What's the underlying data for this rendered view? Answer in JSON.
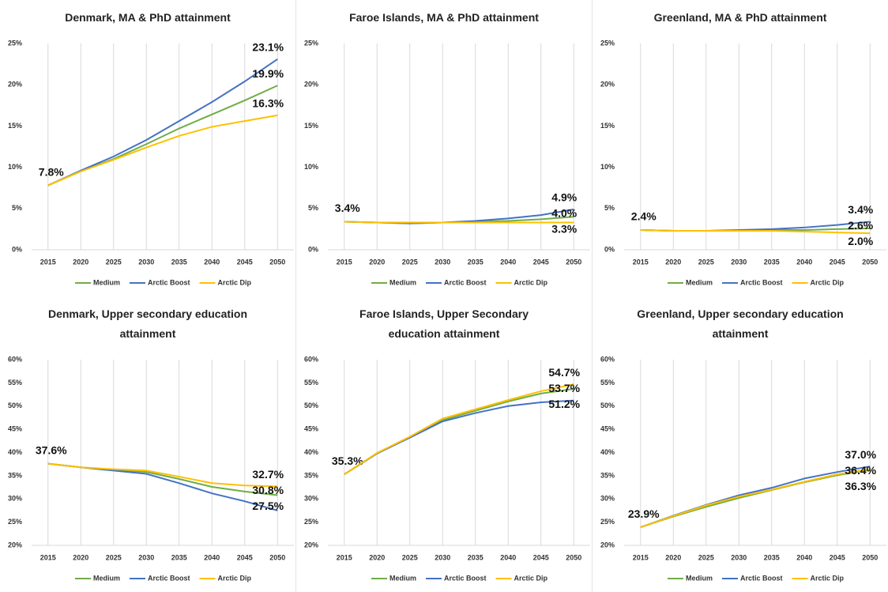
{
  "chart_data": [
    {
      "type": "line",
      "title": "Denmark, MA & PhD attainment",
      "categories": [
        "2015",
        "2020",
        "2025",
        "2030",
        "2035",
        "2040",
        "2045",
        "2050"
      ],
      "ylim": [
        0,
        25
      ],
      "yticks": [
        {
          "value": 0,
          "label": "0%"
        },
        {
          "value": 5,
          "label": "5%"
        },
        {
          "value": 10,
          "label": "10%"
        },
        {
          "value": 15,
          "label": "15%"
        },
        {
          "value": 20,
          "label": "20%"
        },
        {
          "value": 25,
          "label": "25%"
        }
      ],
      "grid": true,
      "legend": "bottom",
      "series": [
        {
          "name": "Medium",
          "color": "#70ad47",
          "values": [
            7.8,
            9.5,
            11.0,
            12.8,
            14.7,
            16.4,
            18.1,
            19.9
          ],
          "value_labels": [
            "7.8%",
            null,
            null,
            null,
            null,
            null,
            null,
            "19.9%"
          ]
        },
        {
          "name": "Arctic Boost",
          "color": "#4472c4",
          "values": [
            7.8,
            9.6,
            11.3,
            13.3,
            15.6,
            17.9,
            20.4,
            23.1
          ],
          "value_labels": [
            null,
            null,
            null,
            null,
            null,
            null,
            null,
            "23.1%"
          ]
        },
        {
          "name": "Arctic Dip",
          "color": "#ffc000",
          "values": [
            7.8,
            9.5,
            10.9,
            12.4,
            13.8,
            14.9,
            15.6,
            16.3
          ],
          "value_labels": [
            null,
            null,
            null,
            null,
            null,
            null,
            null,
            "16.3%"
          ]
        }
      ]
    },
    {
      "type": "line",
      "title": "Faroe Islands, MA & PhD attainment",
      "categories": [
        "2015",
        "2020",
        "2025",
        "2030",
        "2035",
        "2040",
        "2045",
        "2050"
      ],
      "ylim": [
        0,
        25
      ],
      "yticks": [
        {
          "value": 0,
          "label": "0%"
        },
        {
          "value": 5,
          "label": "5%"
        },
        {
          "value": 10,
          "label": "10%"
        },
        {
          "value": 15,
          "label": "15%"
        },
        {
          "value": 20,
          "label": "20%"
        },
        {
          "value": 25,
          "label": "25%"
        }
      ],
      "grid": true,
      "legend": "bottom",
      "series": [
        {
          "name": "Medium",
          "color": "#70ad47",
          "values": [
            3.4,
            3.3,
            3.2,
            3.3,
            3.4,
            3.5,
            3.7,
            4.0
          ],
          "value_labels": [
            "3.4%",
            null,
            null,
            null,
            null,
            null,
            null,
            "4.0%"
          ]
        },
        {
          "name": "Arctic Boost",
          "color": "#4472c4",
          "values": [
            3.4,
            3.3,
            3.2,
            3.3,
            3.5,
            3.8,
            4.2,
            4.9
          ],
          "value_labels": [
            null,
            null,
            null,
            null,
            null,
            null,
            null,
            "4.9%"
          ]
        },
        {
          "name": "Arctic Dip",
          "color": "#ffc000",
          "values": [
            3.4,
            3.3,
            3.3,
            3.3,
            3.3,
            3.3,
            3.3,
            3.3
          ],
          "value_labels": [
            null,
            null,
            null,
            null,
            null,
            null,
            null,
            "3.3%"
          ]
        }
      ]
    },
    {
      "type": "line",
      "title": "Greenland, MA & PhD attainment",
      "categories": [
        "2015",
        "2020",
        "2025",
        "2030",
        "2035",
        "2040",
        "2045",
        "2050"
      ],
      "ylim": [
        0,
        25
      ],
      "yticks": [
        {
          "value": 0,
          "label": "0%"
        },
        {
          "value": 5,
          "label": "5%"
        },
        {
          "value": 10,
          "label": "10%"
        },
        {
          "value": 15,
          "label": "15%"
        },
        {
          "value": 20,
          "label": "20%"
        },
        {
          "value": 25,
          "label": "25%"
        }
      ],
      "grid": true,
      "legend": "bottom",
      "series": [
        {
          "name": "Medium",
          "color": "#70ad47",
          "values": [
            2.4,
            2.3,
            2.3,
            2.3,
            2.4,
            2.4,
            2.5,
            2.6
          ],
          "value_labels": [
            "2.4%",
            null,
            null,
            null,
            null,
            null,
            null,
            "2.6%"
          ]
        },
        {
          "name": "Arctic Boost",
          "color": "#4472c4",
          "values": [
            2.4,
            2.3,
            2.3,
            2.4,
            2.5,
            2.7,
            3.0,
            3.4
          ],
          "value_labels": [
            null,
            null,
            null,
            null,
            null,
            null,
            null,
            "3.4%"
          ]
        },
        {
          "name": "Arctic Dip",
          "color": "#ffc000",
          "values": [
            2.4,
            2.3,
            2.3,
            2.3,
            2.3,
            2.2,
            2.1,
            2.0
          ],
          "value_labels": [
            null,
            null,
            null,
            null,
            null,
            null,
            null,
            "2.0%"
          ]
        }
      ]
    },
    {
      "type": "line",
      "title": "Denmark, Upper secondary education attainment",
      "categories": [
        "2015",
        "2020",
        "2025",
        "2030",
        "2035",
        "2040",
        "2045",
        "2050"
      ],
      "ylim": [
        20,
        60
      ],
      "yticks": [
        {
          "value": 20,
          "label": "20%"
        },
        {
          "value": 25,
          "label": "25%"
        },
        {
          "value": 30,
          "label": "30%"
        },
        {
          "value": 35,
          "label": "35%"
        },
        {
          "value": 40,
          "label": "40%"
        },
        {
          "value": 45,
          "label": "45%"
        },
        {
          "value": 50,
          "label": "50%"
        },
        {
          "value": 55,
          "label": "55%"
        },
        {
          "value": 60,
          "label": "60%"
        }
      ],
      "grid": true,
      "legend": "bottom",
      "series": [
        {
          "name": "Medium",
          "color": "#70ad47",
          "values": [
            37.6,
            36.8,
            36.3,
            35.8,
            34.3,
            32.6,
            31.6,
            30.8
          ],
          "value_labels": [
            "37.6%",
            null,
            null,
            null,
            null,
            null,
            null,
            "30.8%"
          ]
        },
        {
          "name": "Arctic Boost",
          "color": "#4472c4",
          "values": [
            37.6,
            36.8,
            36.1,
            35.4,
            33.4,
            31.2,
            29.5,
            27.5
          ],
          "value_labels": [
            null,
            null,
            null,
            null,
            null,
            null,
            null,
            "27.5%"
          ]
        },
        {
          "name": "Arctic Dip",
          "color": "#ffc000",
          "values": [
            37.6,
            36.8,
            36.4,
            36.1,
            34.8,
            33.4,
            32.9,
            32.7
          ],
          "value_labels": [
            null,
            null,
            null,
            null,
            null,
            null,
            null,
            "32.7%"
          ]
        }
      ]
    },
    {
      "type": "line",
      "title": "Faroe Islands, Upper Secondary education attainment",
      "categories": [
        "2015",
        "2020",
        "2025",
        "2030",
        "2035",
        "2040",
        "2045",
        "2050"
      ],
      "ylim": [
        20,
        60
      ],
      "yticks": [
        {
          "value": 20,
          "label": "20%"
        },
        {
          "value": 25,
          "label": "25%"
        },
        {
          "value": 30,
          "label": "30%"
        },
        {
          "value": 35,
          "label": "35%"
        },
        {
          "value": 40,
          "label": "40%"
        },
        {
          "value": 45,
          "label": "45%"
        },
        {
          "value": 50,
          "label": "50%"
        },
        {
          "value": 55,
          "label": "55%"
        },
        {
          "value": 60,
          "label": "60%"
        }
      ],
      "grid": true,
      "legend": "bottom",
      "series": [
        {
          "name": "Medium",
          "color": "#70ad47",
          "values": [
            35.3,
            39.8,
            43.3,
            47.0,
            49.0,
            51.0,
            52.7,
            53.7
          ],
          "value_labels": [
            "35.3%",
            null,
            null,
            null,
            null,
            null,
            null,
            "53.7%"
          ]
        },
        {
          "name": "Arctic Boost",
          "color": "#4472c4",
          "values": [
            35.3,
            39.8,
            43.2,
            46.7,
            48.5,
            50.0,
            50.8,
            51.2
          ],
          "value_labels": [
            null,
            null,
            null,
            null,
            null,
            null,
            null,
            "51.2%"
          ]
        },
        {
          "name": "Arctic Dip",
          "color": "#ffc000",
          "values": [
            35.3,
            39.9,
            43.4,
            47.3,
            49.3,
            51.3,
            53.2,
            54.7
          ],
          "value_labels": [
            null,
            null,
            null,
            null,
            null,
            null,
            null,
            "54.7%"
          ]
        }
      ]
    },
    {
      "type": "line",
      "title": "Greenland, Upper secondary education attainment",
      "categories": [
        "2015",
        "2020",
        "2025",
        "2030",
        "2035",
        "2040",
        "2045",
        "2050"
      ],
      "ylim": [
        20,
        60
      ],
      "yticks": [
        {
          "value": 20,
          "label": "20%"
        },
        {
          "value": 25,
          "label": "25%"
        },
        {
          "value": 30,
          "label": "30%"
        },
        {
          "value": 35,
          "label": "35%"
        },
        {
          "value": 40,
          "label": "40%"
        },
        {
          "value": 45,
          "label": "45%"
        },
        {
          "value": 50,
          "label": "50%"
        },
        {
          "value": 55,
          "label": "55%"
        },
        {
          "value": 60,
          "label": "60%"
        }
      ],
      "grid": true,
      "legend": "bottom",
      "series": [
        {
          "name": "Medium",
          "color": "#70ad47",
          "values": [
            23.9,
            26.2,
            28.3,
            30.2,
            31.9,
            33.6,
            35.1,
            36.3
          ],
          "value_labels": [
            "23.9%",
            null,
            null,
            null,
            null,
            null,
            null,
            "36.3%"
          ]
        },
        {
          "name": "Arctic Boost",
          "color": "#4472c4",
          "values": [
            23.9,
            26.4,
            28.7,
            30.8,
            32.4,
            34.4,
            35.8,
            37.0
          ],
          "value_labels": [
            null,
            null,
            null,
            null,
            null,
            null,
            null,
            "37.0%"
          ]
        },
        {
          "name": "Arctic Dip",
          "color": "#ffc000",
          "values": [
            23.9,
            26.3,
            28.6,
            30.5,
            32.0,
            33.7,
            35.3,
            36.4
          ],
          "value_labels": [
            null,
            null,
            null,
            null,
            null,
            null,
            null,
            "36.4%"
          ]
        }
      ]
    }
  ]
}
